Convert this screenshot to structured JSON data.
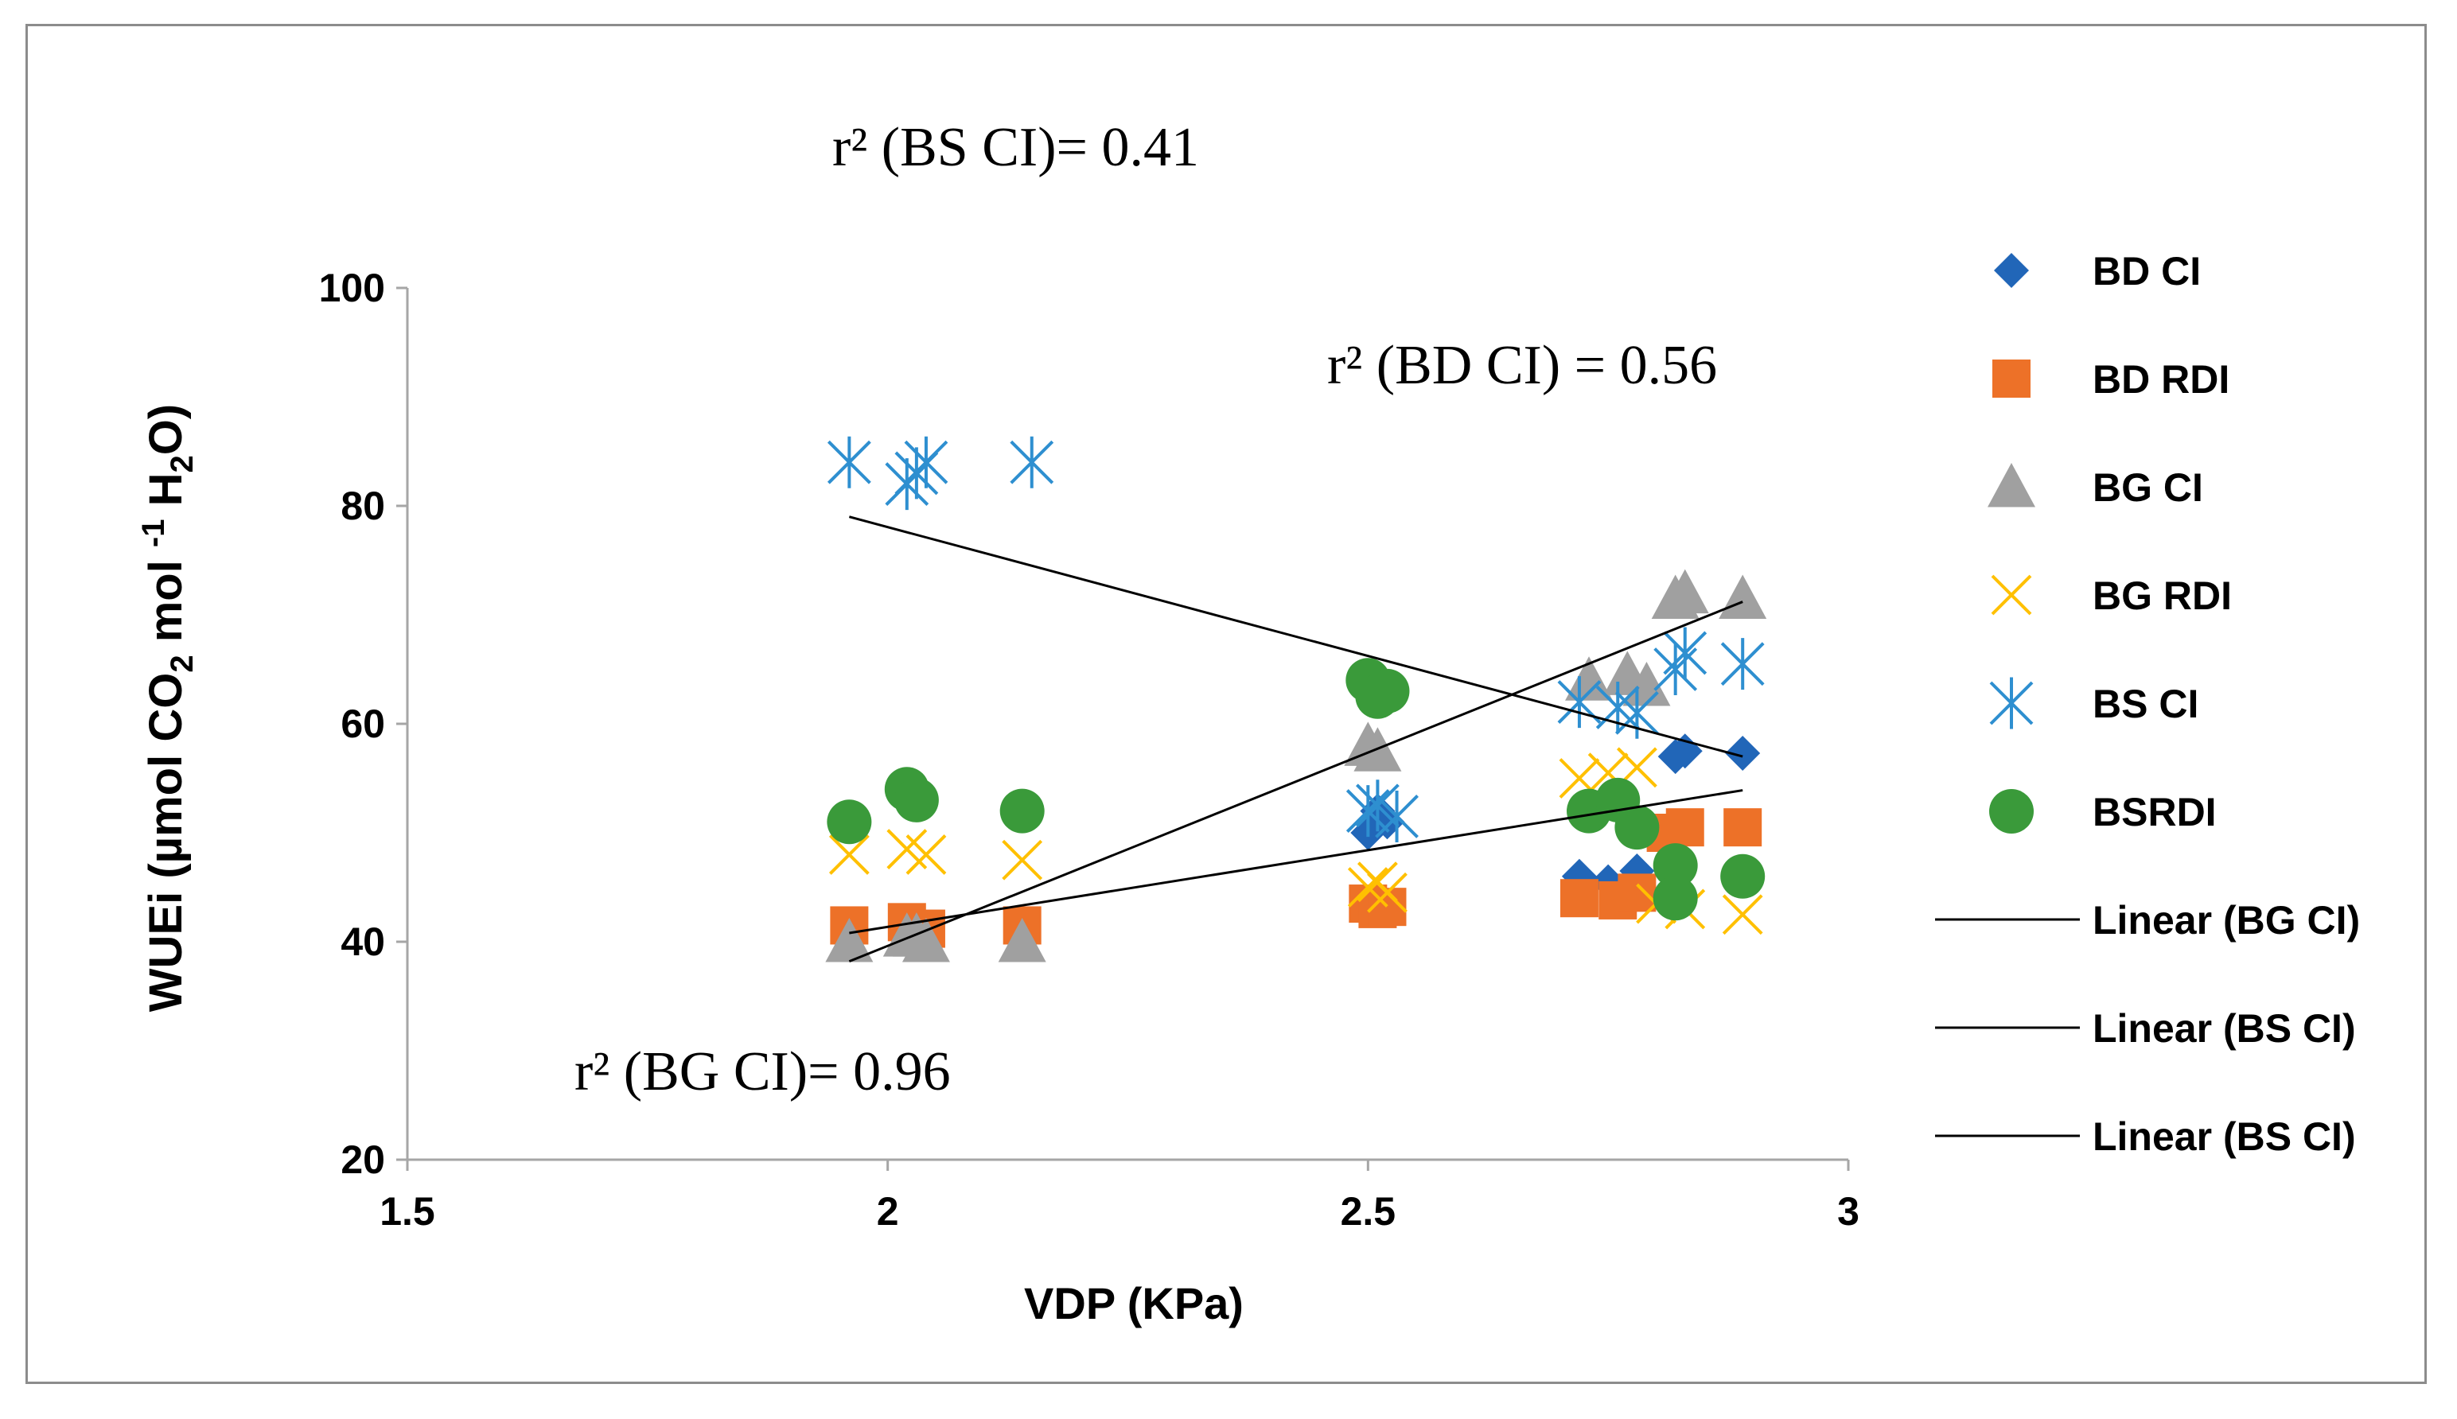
{
  "chart_data": {
    "type": "scatter",
    "title": "",
    "xlabel": "VDP (KPa)",
    "ylabel": {
      "main": "WUEi (µmol CO",
      "sub1": "2",
      "mid": " mol ",
      "sup": "-1",
      "mid2": " H",
      "sub2": "2",
      "end": "O)"
    },
    "xlim": [
      1.5,
      3
    ],
    "ylim": [
      20,
      100
    ],
    "xticks": [
      "1.5",
      "2",
      "2.5",
      "3"
    ],
    "yticks": [
      "20",
      "40",
      "60",
      "80",
      "100"
    ],
    "grid": false,
    "legend_position": "right",
    "series": [
      {
        "name": " BD CI",
        "marker": "diamond",
        "color": "#2166b8",
        "points": [
          [
            1.96,
            40.5
          ],
          [
            2.02,
            41.2
          ],
          [
            2.03,
            40.8
          ],
          [
            2.14,
            41.5
          ],
          [
            2.5,
            50
          ],
          [
            2.51,
            52
          ],
          [
            2.52,
            51
          ],
          [
            2.72,
            46
          ],
          [
            2.75,
            45.5
          ],
          [
            2.78,
            46.5
          ],
          [
            2.82,
            57
          ],
          [
            2.83,
            57.5
          ],
          [
            2.89,
            57.3
          ]
        ]
      },
      {
        "name": "BD RDI",
        "marker": "square",
        "color": "#ed7128",
        "points": [
          [
            1.96,
            41.5
          ],
          [
            2.02,
            41.8
          ],
          [
            2.04,
            41.2
          ],
          [
            2.14,
            41.5
          ],
          [
            2.5,
            43.5
          ],
          [
            2.51,
            43
          ],
          [
            2.52,
            43.2
          ],
          [
            2.72,
            44
          ],
          [
            2.76,
            43.8
          ],
          [
            2.78,
            44.5
          ],
          [
            2.81,
            50
          ],
          [
            2.83,
            50.5
          ],
          [
            2.89,
            50.5
          ]
        ]
      },
      {
        "name": "BG CI",
        "marker": "triangle",
        "color": "#a0a0a0",
        "points": [
          [
            1.96,
            40
          ],
          [
            2.02,
            40.5
          ],
          [
            2.03,
            40.5
          ],
          [
            2.04,
            40
          ],
          [
            2.14,
            40
          ],
          [
            2.5,
            58
          ],
          [
            2.51,
            57.5
          ],
          [
            2.73,
            64
          ],
          [
            2.77,
            64.5
          ],
          [
            2.79,
            63.5
          ],
          [
            2.82,
            71.5
          ],
          [
            2.83,
            72
          ],
          [
            2.89,
            71.5
          ]
        ]
      },
      {
        "name": " BG RDI",
        "marker": "x",
        "color": "#ffc000",
        "points": [
          [
            1.96,
            48
          ],
          [
            2.02,
            48.5
          ],
          [
            2.04,
            48
          ],
          [
            2.14,
            47.5
          ],
          [
            2.5,
            45
          ],
          [
            2.51,
            45.5
          ],
          [
            2.52,
            44.5
          ],
          [
            2.72,
            55
          ],
          [
            2.75,
            55.5
          ],
          [
            2.78,
            56
          ],
          [
            2.8,
            43.5
          ],
          [
            2.83,
            43
          ],
          [
            2.89,
            42.5
          ]
        ]
      },
      {
        "name": "BS CI",
        "marker": "asterisk",
        "color": "#2e8fd0",
        "points": [
          [
            1.96,
            84
          ],
          [
            2.02,
            82
          ],
          [
            2.03,
            83
          ],
          [
            2.04,
            84
          ],
          [
            2.15,
            84
          ],
          [
            2.5,
            52
          ],
          [
            2.51,
            52.5
          ],
          [
            2.53,
            51.5
          ],
          [
            2.72,
            62
          ],
          [
            2.76,
            61.5
          ],
          [
            2.78,
            61
          ],
          [
            2.82,
            65
          ],
          [
            2.83,
            66.5
          ],
          [
            2.89,
            65.5
          ]
        ]
      },
      {
        "name": "BSRDI",
        "marker": "circle",
        "color": "#3a9a3a",
        "points": [
          [
            1.96,
            51
          ],
          [
            2.02,
            54
          ],
          [
            2.03,
            53
          ],
          [
            2.14,
            52
          ],
          [
            2.5,
            64
          ],
          [
            2.51,
            62.5
          ],
          [
            2.52,
            63
          ],
          [
            2.73,
            52
          ],
          [
            2.76,
            53
          ],
          [
            2.78,
            50.5
          ],
          [
            2.82,
            47
          ],
          [
            2.82,
            44
          ],
          [
            2.89,
            46
          ]
        ]
      }
    ],
    "trendlines": [
      {
        "name": "Linear (BG CI)",
        "x": [
          1.96,
          2.89
        ],
        "y": [
          38.2,
          71.2
        ]
      },
      {
        "name": "Linear (BS CI)",
        "x": [
          1.96,
          2.89
        ],
        "y": [
          79,
          57
        ]
      },
      {
        "name": "Linear (BS CI)",
        "x": [
          1.96,
          2.89
        ],
        "y": [
          40.8,
          53.9
        ]
      }
    ],
    "annotations": [
      {
        "id": "bs",
        "text": "r² (BS CI)= 0.41"
      },
      {
        "id": "bd",
        "text": "r² (BD CI) = 0.56"
      },
      {
        "id": "bg",
        "text": "r² (BG CI)= 0.96"
      }
    ]
  }
}
